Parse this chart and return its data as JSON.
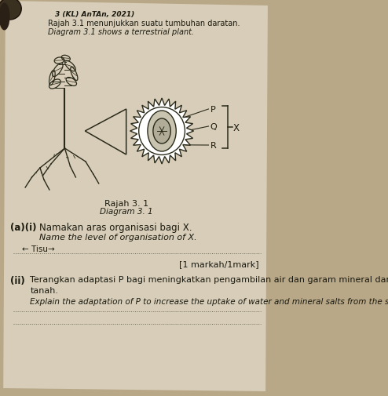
{
  "bg_color": "#b8a888",
  "paper_color": "#d8cdb8",
  "header_text": "3 (KL) AnTAn, 2021)",
  "line1_malay": "Rajah 3.1 menunjukkan suatu tumbuhan daratan.",
  "line1_english": "Diagram 3.1 shows a terrestrial plant.",
  "caption_malay": "Rajah 3. 1",
  "caption_english": "Diagram 3. 1",
  "label_P": "P",
  "label_Q": "Q",
  "label_R": "R",
  "label_X": "X",
  "section_a_label": "(a)(i)",
  "section_a_i_malay": "Namakan aras organisasi bagi X.",
  "section_a_i_english": "Name the level of organisation of X.",
  "answer_hint": "← Tisu→",
  "marks_text": "[1 markah/1mark]",
  "section_ii_label": "(ii)",
  "section_ii_malay": "Terangkan adaptasi P bagi meningkatkan pengambilan air dan garam mineral daripada",
  "section_ii_malay2": "tanah.",
  "section_ii_english": "Explain the adaptation of P to increase the uptake of water and mineral salts from the soil.",
  "dotted_line_color": "#666655",
  "text_color": "#1a1a10",
  "drawing_color": "#2a2a1a"
}
